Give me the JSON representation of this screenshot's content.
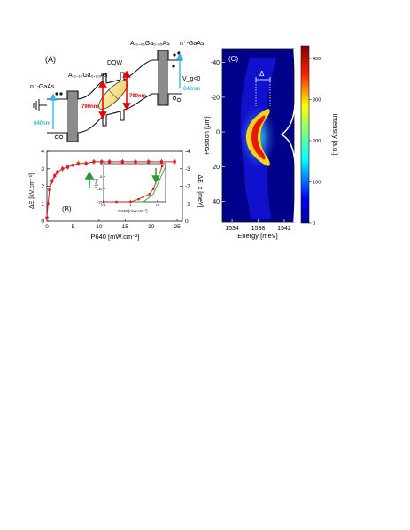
{
  "panel_a": {
    "label": "(A)",
    "layers": {
      "left_contact": "n⁺-GaAs",
      "left_barrier": "Al₀.₁₀Ga₀.₉₀As",
      "well": "DQW",
      "right_barrier": "Al₀.₄₅Ga₀.₅₅As",
      "right_contact": "n⁺-GaAs"
    },
    "gate_voltage": "V_g<0",
    "laser_left": "640nm",
    "laser_right": "640nm",
    "emission_left": "790nm",
    "emission_right": "790nm",
    "colors": {
      "laser": "#38b6e8",
      "emission": "#e00000",
      "barrier": "#888888",
      "exciton": "#f3e48a"
    }
  },
  "panel_b": {
    "label": "(B)",
    "y_left_label": "ΔE [kV.cm⁻¹]",
    "y_right_label": "ΔE_x [meV]",
    "x_label": "P640 [mW.cm⁻²]",
    "inset_y_label": "I [nA]",
    "inset_x_label": "P640 [mW.cm⁻²]",
    "colors": {
      "series": "#d42020",
      "fit": "#2aa83a",
      "arrow": "#2a9a3a"
    },
    "chart_data": {
      "type": "scatter",
      "x": [
        0.0,
        0.2,
        0.5,
        1.0,
        1.5,
        2.0,
        3.0,
        4.0,
        5.0,
        6.0,
        7.5,
        9.0,
        10.5,
        12.0,
        14.5,
        17.0,
        19.5,
        22.0,
        24.5
      ],
      "y": [
        0.2,
        1.0,
        1.8,
        2.3,
        2.6,
        2.8,
        3.0,
        3.1,
        3.2,
        3.3,
        3.3,
        3.4,
        3.4,
        3.4,
        3.4,
        3.4,
        3.4,
        3.4,
        3.4
      ],
      "xlim": [
        0,
        26
      ],
      "ylim": [
        0,
        4
      ],
      "right_ylim": [
        0,
        -4
      ],
      "x_ticks": [
        "0",
        "5",
        "10",
        "15",
        "20",
        "25"
      ],
      "y_ticks": [
        "0",
        "1",
        "2",
        "3",
        "4"
      ],
      "right_y_ticks": [
        "0",
        "-1",
        "-2",
        "-3",
        "-4"
      ]
    },
    "inset_chart_data": {
      "type": "scatter",
      "x_log": true,
      "x": [
        0.1,
        0.3,
        1,
        2,
        3,
        5,
        7,
        10,
        15
      ],
      "y": [
        -15,
        -15,
        -15,
        -14,
        -13,
        -12,
        -10,
        -6,
        -1
      ],
      "xlim": [
        0.1,
        20
      ],
      "ylim": [
        -15,
        0
      ],
      "x_ticks": [
        "0.1",
        "1",
        "10"
      ],
      "y_ticks": [
        "-15",
        "-10",
        "-5",
        "0"
      ],
      "fit_levels": [
        -15,
        -12,
        -1
      ]
    }
  },
  "panel_c": {
    "label": "(C)",
    "delta_label": "Δ",
    "x_label": "Energy [meV]",
    "y_label": "Position [μm]",
    "colorbar_label": "Intensity [a.u.]",
    "x_ticks": [
      "1534",
      "1538",
      "1542"
    ],
    "y_ticks": [
      "-40",
      "-20",
      "0",
      "20",
      "40"
    ],
    "colorbar_ticks": [
      "0",
      "100",
      "200",
      "300",
      "400"
    ],
    "xlim": [
      1532.5,
      1543.5
    ],
    "ylim": [
      -48,
      52
    ],
    "colorbar_range": [
      0,
      430
    ]
  }
}
